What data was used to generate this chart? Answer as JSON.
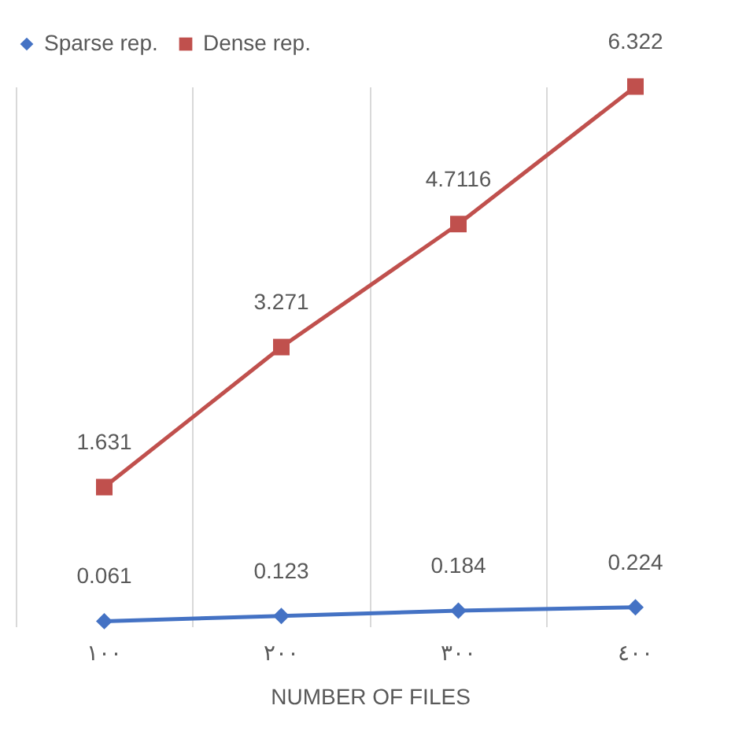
{
  "chart_data": {
    "type": "line",
    "xlabel": "NUMBER OF FILES",
    "categories": [
      "١٠٠",
      "٢٠٠",
      "٣٠٠",
      "٤٠٠"
    ],
    "series": [
      {
        "name": "Sparse rep.",
        "color": "#4472c4",
        "marker": "diamond",
        "values": [
          0.061,
          0.123,
          0.184,
          0.224
        ]
      },
      {
        "name": "Dense rep.",
        "color": "#c0504d",
        "marker": "square",
        "values": [
          1.631,
          3.271,
          4.7116,
          6.322
        ]
      }
    ],
    "data_labels": true,
    "grid": "x",
    "legend": "top",
    "tick_labels": "x"
  }
}
